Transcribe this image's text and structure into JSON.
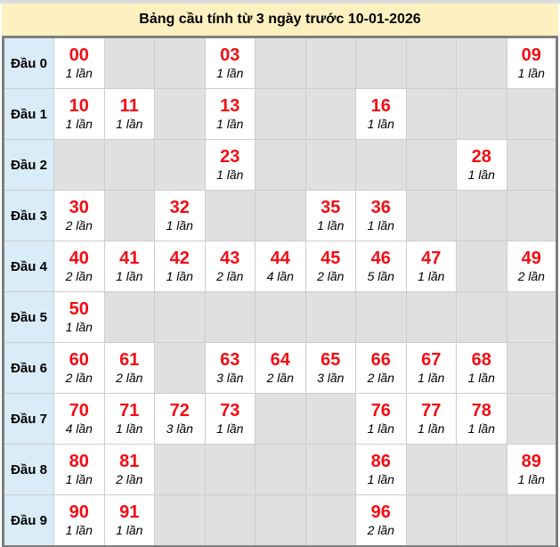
{
  "title": "Bảng cầu tính từ 3 ngày trước 10-01-2026",
  "colors": {
    "title_bg": "#fdf1c0",
    "row_label_bg": "#d9ecf8",
    "filled_cell_bg": "#ffffff",
    "empty_cell_bg": "#e0e0e0",
    "number_red": "#f20d14",
    "table_border": "#7f7f7f",
    "top_strip": "#dcdcdc"
  },
  "table": {
    "rows": [
      {
        "label": "Đầu 0",
        "cells": [
          {
            "num": "00",
            "count": "1 lần"
          },
          null,
          null,
          {
            "num": "03",
            "count": "1 lần"
          },
          null,
          null,
          null,
          null,
          null,
          {
            "num": "09",
            "count": "1 lần"
          }
        ]
      },
      {
        "label": "Đầu 1",
        "cells": [
          {
            "num": "10",
            "count": "1 lần"
          },
          {
            "num": "11",
            "count": "1 lần"
          },
          null,
          {
            "num": "13",
            "count": "1 lần"
          },
          null,
          null,
          {
            "num": "16",
            "count": "1 lần"
          },
          null,
          null,
          null
        ]
      },
      {
        "label": "Đầu 2",
        "cells": [
          null,
          null,
          null,
          {
            "num": "23",
            "count": "1 lần"
          },
          null,
          null,
          null,
          null,
          {
            "num": "28",
            "count": "1 lần"
          },
          null
        ]
      },
      {
        "label": "Đầu 3",
        "cells": [
          {
            "num": "30",
            "count": "2 lần"
          },
          null,
          {
            "num": "32",
            "count": "1 lần"
          },
          null,
          null,
          {
            "num": "35",
            "count": "1 lần"
          },
          {
            "num": "36",
            "count": "1 lần"
          },
          null,
          null,
          null
        ]
      },
      {
        "label": "Đầu 4",
        "cells": [
          {
            "num": "40",
            "count": "2 lần"
          },
          {
            "num": "41",
            "count": "1 lần"
          },
          {
            "num": "42",
            "count": "1 lần"
          },
          {
            "num": "43",
            "count": "2 lần"
          },
          {
            "num": "44",
            "count": "4 lần"
          },
          {
            "num": "45",
            "count": "2 lần"
          },
          {
            "num": "46",
            "count": "5 lần"
          },
          {
            "num": "47",
            "count": "1 lần"
          },
          null,
          {
            "num": "49",
            "count": "2 lần"
          }
        ]
      },
      {
        "label": "Đầu 5",
        "cells": [
          {
            "num": "50",
            "count": "1 lần"
          },
          null,
          null,
          null,
          null,
          null,
          null,
          null,
          null,
          null
        ]
      },
      {
        "label": "Đầu 6",
        "cells": [
          {
            "num": "60",
            "count": "2 lần"
          },
          {
            "num": "61",
            "count": "2 lần"
          },
          null,
          {
            "num": "63",
            "count": "3 lần"
          },
          {
            "num": "64",
            "count": "2 lần"
          },
          {
            "num": "65",
            "count": "3 lần"
          },
          {
            "num": "66",
            "count": "2 lần"
          },
          {
            "num": "67",
            "count": "1 lần"
          },
          {
            "num": "68",
            "count": "1 lần"
          },
          null
        ]
      },
      {
        "label": "Đầu 7",
        "cells": [
          {
            "num": "70",
            "count": "4 lần"
          },
          {
            "num": "71",
            "count": "1 lần"
          },
          {
            "num": "72",
            "count": "3 lần"
          },
          {
            "num": "73",
            "count": "1 lần"
          },
          null,
          null,
          {
            "num": "76",
            "count": "1 lần"
          },
          {
            "num": "77",
            "count": "1 lần"
          },
          {
            "num": "78",
            "count": "1 lần"
          },
          null
        ]
      },
      {
        "label": "Đầu 8",
        "cells": [
          {
            "num": "80",
            "count": "1 lần"
          },
          {
            "num": "81",
            "count": "2 lần"
          },
          null,
          null,
          null,
          null,
          {
            "num": "86",
            "count": "1 lần"
          },
          null,
          null,
          {
            "num": "89",
            "count": "1 lần"
          }
        ]
      },
      {
        "label": "Đầu 9",
        "cells": [
          {
            "num": "90",
            "count": "1 lần"
          },
          {
            "num": "91",
            "count": "1 lần"
          },
          null,
          null,
          null,
          null,
          {
            "num": "96",
            "count": "2 lần"
          },
          null,
          null,
          null
        ]
      }
    ]
  }
}
